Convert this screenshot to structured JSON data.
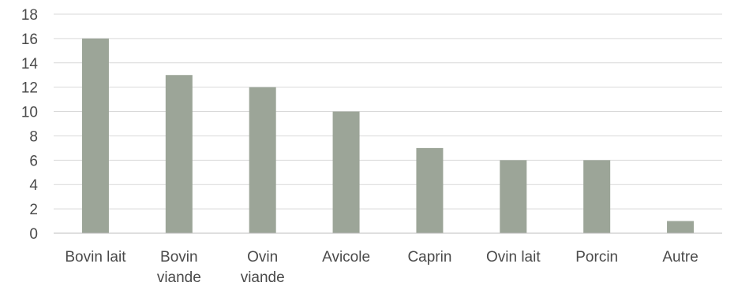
{
  "chart_data": {
    "type": "bar",
    "categories": [
      [
        "Bovin lait"
      ],
      [
        "Bovin",
        "viande"
      ],
      [
        "Ovin",
        "viande"
      ],
      [
        "Avicole"
      ],
      [
        "Caprin"
      ],
      [
        "Ovin lait"
      ],
      [
        "Porcin"
      ],
      [
        "Autre"
      ]
    ],
    "values": [
      16,
      13,
      12,
      10,
      7,
      6,
      6,
      1
    ],
    "ylim": [
      0,
      18
    ],
    "yticks": [
      0,
      2,
      4,
      6,
      8,
      10,
      12,
      14,
      16,
      18
    ],
    "grid": true,
    "legend": "none",
    "bar_color": "#9ca598"
  }
}
